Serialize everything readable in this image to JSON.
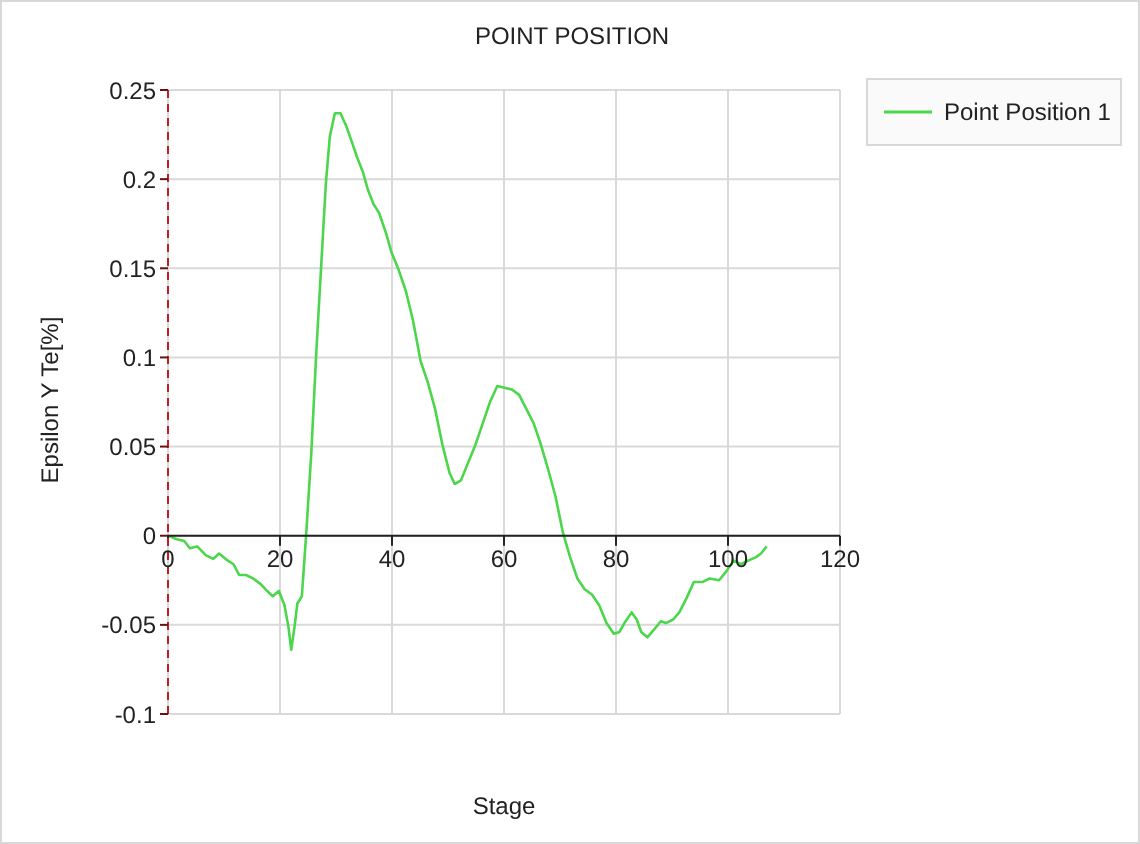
{
  "chart_data": {
    "type": "line",
    "title": "POINT POSITION",
    "xlabel": "Stage",
    "ylabel": "Epsilon Y Te[%]",
    "x": [
      0,
      1.6,
      2.9,
      3.9,
      5.2,
      6.8,
      8.1,
      9.1,
      10.7,
      11.7,
      12.7,
      13.9,
      15.2,
      16.5,
      17.4,
      18.7,
      19.8,
      20.8,
      21.5,
      22.0,
      22.6,
      23.1,
      23.9,
      24.7,
      25.6,
      26.5,
      27.6,
      28.2,
      28.9,
      29.8,
      30.8,
      31.8,
      32.7,
      33.8,
      34.8,
      35.7,
      36.7,
      37.7,
      39.0,
      39.9,
      41.2,
      42.5,
      43.8,
      45.1,
      46.4,
      47.7,
      49.0,
      50.3,
      51.2,
      52.3,
      53.6,
      54.9,
      56.2,
      57.5,
      58.8,
      60.1,
      61.4,
      62.7,
      64.0,
      65.3,
      66.6,
      67.9,
      69.2,
      70.5,
      71.8,
      73.1,
      74.4,
      75.7,
      77.0,
      78.3,
      79.6,
      80.6,
      81.5,
      82.8,
      83.7,
      84.5,
      85.6,
      86.7,
      88.0,
      88.9,
      90.2,
      91.3,
      92.6,
      93.9,
      95.4,
      96.7,
      98.4,
      99.7,
      101.0,
      102.3,
      103.6,
      105.0,
      105.9,
      106.9
    ],
    "series": [
      {
        "name": "Point Position 1",
        "color": "#4cd64c",
        "values": [
          0,
          -0.002,
          -0.003,
          -0.007,
          -0.006,
          -0.011,
          -0.013,
          -0.01,
          -0.014,
          -0.016,
          -0.022,
          -0.022,
          -0.024,
          -0.027,
          -0.03,
          -0.034,
          -0.031,
          -0.039,
          -0.051,
          -0.064,
          -0.051,
          -0.038,
          -0.034,
          0.002,
          0.047,
          0.104,
          0.165,
          0.198,
          0.224,
          0.237,
          0.237,
          0.23,
          0.222,
          0.212,
          0.204,
          0.194,
          0.186,
          0.181,
          0.169,
          0.159,
          0.149,
          0.137,
          0.12,
          0.098,
          0.086,
          0.071,
          0.051,
          0.035,
          0.029,
          0.031,
          0.041,
          0.051,
          0.063,
          0.075,
          0.084,
          0.083,
          0.082,
          0.079,
          0.071,
          0.063,
          0.051,
          0.037,
          0.022,
          0.002,
          -0.012,
          -0.024,
          -0.03,
          -0.033,
          -0.039,
          -0.049,
          -0.055,
          -0.054,
          -0.049,
          -0.043,
          -0.047,
          -0.054,
          -0.057,
          -0.053,
          -0.048,
          -0.049,
          -0.047,
          -0.043,
          -0.035,
          -0.026,
          -0.026,
          -0.024,
          -0.025,
          -0.02,
          -0.014,
          -0.016,
          -0.014,
          -0.012,
          -0.01,
          -0.006
        ]
      }
    ],
    "xlim": [
      0,
      120
    ],
    "xticks": [
      0,
      20,
      40,
      60,
      80,
      100,
      120
    ],
    "ylim": [
      -0.1,
      0.25
    ],
    "yticks": [
      -0.1,
      -0.05,
      0,
      0.05,
      0.1,
      0.15,
      0.2,
      0.25
    ],
    "grid": true,
    "legend": "top right",
    "line_style": "solid"
  }
}
